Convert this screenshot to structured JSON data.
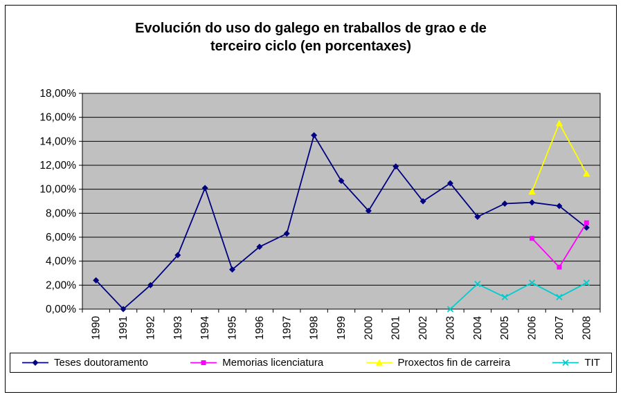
{
  "frame": {
    "background": "#FFFFFF",
    "border_color": "#000000"
  },
  "chart_data": {
    "type": "line",
    "title": "Evolución do uso do galego en traballos de grao e de terceiro ciclo (en porcentaxes)",
    "title_lines": [
      "Evolución do uso do galego en traballos de grao e de",
      "terceiro ciclo (en porcentaxes)"
    ],
    "categories": [
      "1990",
      "1991",
      "1992",
      "1993",
      "1994",
      "1995",
      "1996",
      "1997",
      "1998",
      "1999",
      "2000",
      "2001",
      "2002",
      "2003",
      "2004",
      "2005",
      "2006",
      "2007",
      "2008"
    ],
    "series": [
      {
        "name": "Teses doutoramento",
        "color": "#000080",
        "marker": "diamond",
        "values": [
          2.4,
          0.0,
          2.0,
          4.5,
          10.1,
          3.3,
          5.2,
          6.3,
          14.5,
          10.7,
          8.2,
          11.9,
          9.0,
          10.5,
          7.7,
          8.8,
          8.9,
          8.6,
          6.8
        ]
      },
      {
        "name": "Memorias licenciatura",
        "color": "#FF00FF",
        "marker": "square",
        "values": [
          null,
          null,
          null,
          null,
          null,
          null,
          null,
          null,
          null,
          null,
          null,
          null,
          null,
          null,
          null,
          null,
          5.9,
          3.5,
          7.2
        ]
      },
      {
        "name": "Proxectos fin de carreira",
        "color": "#FFFF00",
        "marker": "triangle",
        "values": [
          null,
          null,
          null,
          null,
          null,
          null,
          null,
          null,
          null,
          null,
          null,
          null,
          null,
          null,
          null,
          null,
          9.8,
          15.5,
          11.3
        ]
      },
      {
        "name": "TIT",
        "color": "#00CCCC",
        "marker": "x",
        "values": [
          null,
          null,
          null,
          null,
          null,
          null,
          null,
          null,
          null,
          null,
          null,
          null,
          null,
          0.0,
          2.1,
          1.0,
          2.2,
          1.0,
          2.2
        ]
      }
    ],
    "y_axis": {
      "min": 0,
      "max": 18,
      "step": 2,
      "unit": "%",
      "tick_labels": [
        "0,00%",
        "2,00%",
        "4,00%",
        "6,00%",
        "8,00%",
        "10,00%",
        "12,00%",
        "14,00%",
        "16,00%",
        "18,00%"
      ]
    },
    "x_axis": {
      "label_rotation": -90
    },
    "plot": {
      "background": "#C0C0C0",
      "gridline_color": "#000000",
      "border_color": "#000000",
      "grid": "horizontal"
    },
    "legend": {
      "position": "bottom",
      "border_color": "#000000"
    }
  }
}
